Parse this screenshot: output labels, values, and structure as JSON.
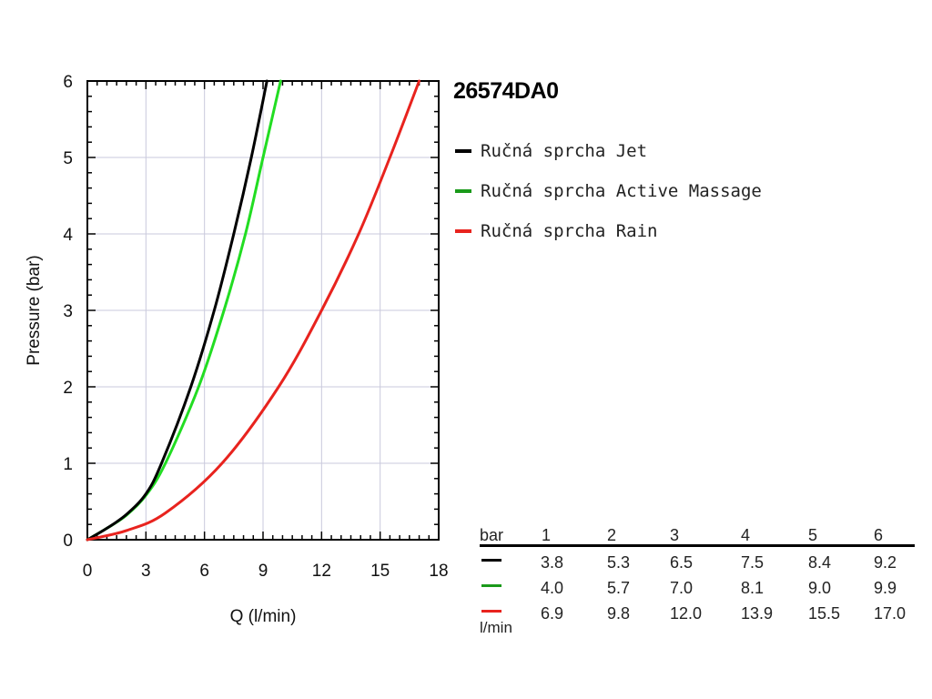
{
  "chart_data": {
    "type": "line",
    "title": "26574DA0",
    "xlabel": "Q (l/min)",
    "ylabel": "Pressure (bar)",
    "xlim": [
      0,
      18
    ],
    "ylim": [
      0,
      6
    ],
    "x_ticks": [
      "0",
      "3",
      "6",
      "9",
      "12",
      "15",
      "18"
    ],
    "y_ticks": [
      "0",
      "1",
      "2",
      "3",
      "4",
      "5",
      "6"
    ],
    "grid": true,
    "legend_position": "right",
    "series": [
      {
        "name": "Ručná sprcha Jet",
        "color": "#000000",
        "x": [
          0,
          1,
          2,
          3,
          3.8,
          5.3,
          6.5,
          7.5,
          8.4,
          9.2
        ],
        "y": [
          0,
          0.15,
          0.33,
          0.6,
          1,
          2,
          3,
          4,
          5,
          6
        ]
      },
      {
        "name": "Ručná sprcha Active Massage",
        "color": "#22dd22",
        "x": [
          0,
          1,
          2,
          3,
          4.0,
          5.7,
          7.0,
          8.1,
          9.0,
          9.9
        ],
        "y": [
          0,
          0.15,
          0.32,
          0.58,
          1,
          2,
          3,
          4,
          5,
          6
        ]
      },
      {
        "name": "Ručná sprcha Rain",
        "color": "#e8231e",
        "x": [
          0,
          2,
          4,
          6.9,
          9.8,
          12.0,
          13.9,
          15.5,
          17.0
        ],
        "y": [
          0,
          0.12,
          0.35,
          1,
          2,
          3,
          4,
          5,
          6
        ]
      }
    ]
  },
  "table": {
    "header_label": "bar",
    "unit_label": "l/min",
    "columns": [
      "1",
      "2",
      "3",
      "4",
      "5",
      "6"
    ],
    "rows": [
      {
        "color": "#000000",
        "values": [
          "3.8",
          "5.3",
          "6.5",
          "7.5",
          "8.4",
          "9.2"
        ]
      },
      {
        "color": "#1a9a1a",
        "values": [
          "4.0",
          "5.7",
          "7.0",
          "8.1",
          "9.0",
          "9.9"
        ]
      },
      {
        "color": "#e8231e",
        "values": [
          "6.9",
          "9.8",
          "12.0",
          "13.9",
          "15.5",
          "17.0"
        ]
      }
    ]
  }
}
